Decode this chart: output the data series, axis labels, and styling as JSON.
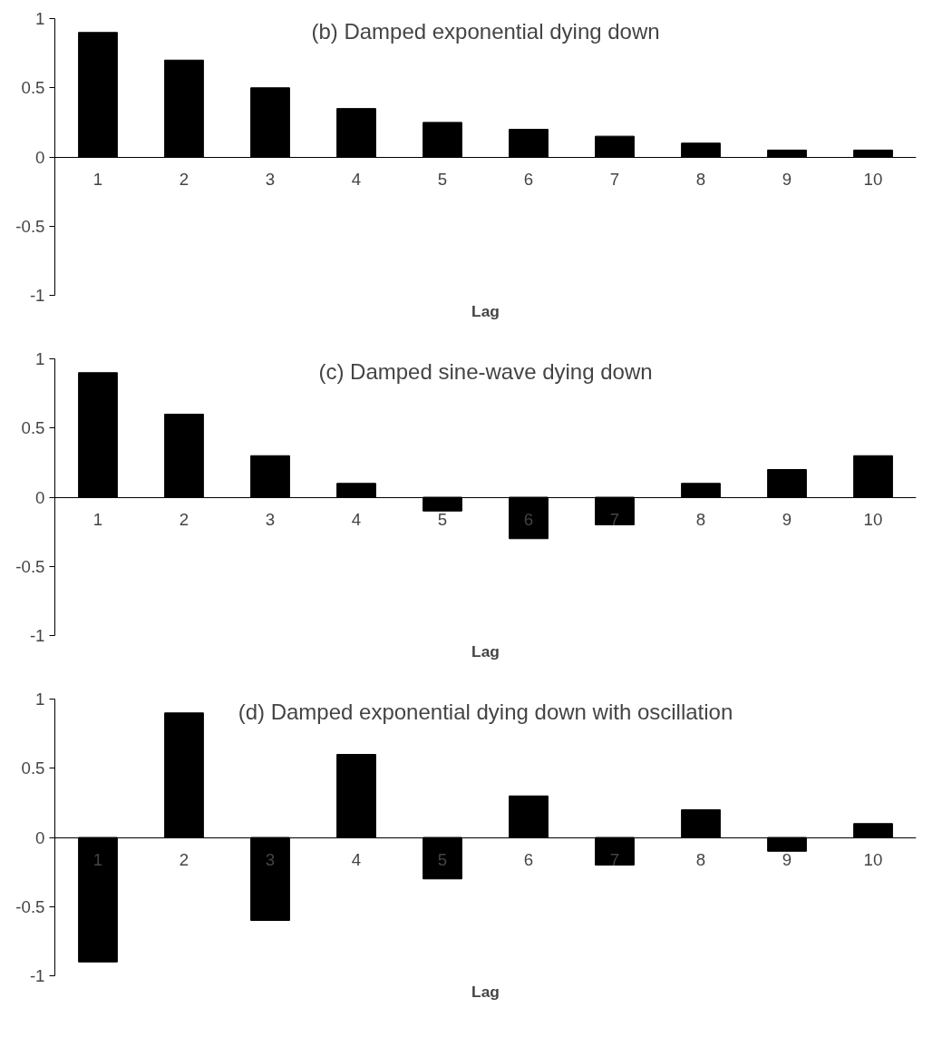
{
  "chart_data": [
    {
      "type": "bar",
      "title": "(b) Damped exponential dying down",
      "xlabel": "Lag",
      "categories": [
        "1",
        "2",
        "3",
        "4",
        "5",
        "6",
        "7",
        "8",
        "9",
        "10"
      ],
      "values": [
        0.9,
        0.7,
        0.5,
        0.35,
        0.25,
        0.2,
        0.15,
        0.1,
        0.05,
        0.05
      ],
      "color": "#000000",
      "ylim": [
        -1,
        1
      ],
      "yticks": [
        -1,
        -0.5,
        0,
        0.5,
        1
      ],
      "grid": false
    },
    {
      "type": "bar",
      "title": "(c) Damped sine-wave dying down",
      "xlabel": "Lag",
      "categories": [
        "1",
        "2",
        "3",
        "4",
        "5",
        "6",
        "7",
        "8",
        "9",
        "10"
      ],
      "values": [
        0.9,
        0.6,
        0.3,
        0.1,
        -0.1,
        -0.3,
        -0.2,
        0.1,
        0.2,
        0.3
      ],
      "color": "#000000",
      "ylim": [
        -1,
        1
      ],
      "yticks": [
        -1,
        -0.5,
        0,
        0.5,
        1
      ],
      "grid": false
    },
    {
      "type": "bar",
      "title": "(d) Damped exponential dying down with oscillation",
      "xlabel": "Lag",
      "categories": [
        "1",
        "2",
        "3",
        "4",
        "5",
        "6",
        "7",
        "8",
        "9",
        "10"
      ],
      "values": [
        -0.9,
        0.9,
        -0.6,
        0.6,
        -0.3,
        0.3,
        -0.2,
        0.2,
        -0.1,
        0.1
      ],
      "color": "#000000",
      "ylim": [
        -1,
        1
      ],
      "yticks": [
        -1,
        -0.5,
        0,
        0.5,
        1
      ],
      "grid": false
    }
  ]
}
